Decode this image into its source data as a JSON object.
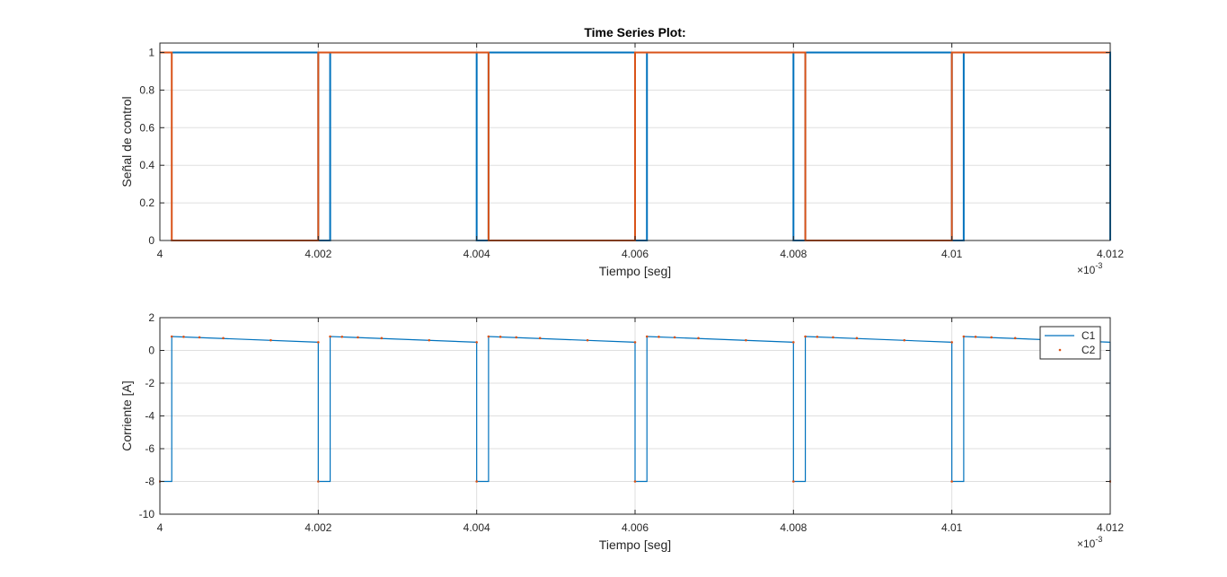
{
  "chart_data": [
    {
      "type": "line",
      "title": "Time Series Plot:",
      "xlabel": "Tiempo [seg]",
      "ylabel": "Señal de control",
      "x_exponent": "10",
      "x_exponent_power": "-3",
      "x_multiplier_sign": "×",
      "xlim": [
        4.0,
        4.012
      ],
      "ylim": [
        0,
        1.05
      ],
      "xticks": [
        4.0,
        4.002,
        4.004,
        4.006,
        4.008,
        4.01,
        4.012
      ],
      "xtick_labels": [
        "4",
        "4.002",
        "4.004",
        "4.006",
        "4.008",
        "4.01",
        "4.012"
      ],
      "yticks": [
        0,
        0.2,
        0.4,
        0.6,
        0.8,
        1
      ],
      "ytick_labels": [
        "0",
        "0.2",
        "0.4",
        "0.6",
        "0.8",
        "1"
      ],
      "grid": true,
      "series": [
        {
          "color": "#0072BD",
          "x": [
            4.0,
            4.00015,
            4.00015,
            4.002,
            4.002,
            4.00215,
            4.00215,
            4.004,
            4.004,
            4.00415,
            4.00415,
            4.006,
            4.006,
            4.00615,
            4.00615,
            4.008,
            4.008,
            4.00815,
            4.00815,
            4.01,
            4.01,
            4.01015,
            4.01015,
            4.012,
            4.012
          ],
          "y": [
            1,
            1,
            1,
            1,
            0,
            0,
            1,
            1,
            0,
            0,
            1,
            1,
            0,
            0,
            1,
            1,
            0,
            0,
            1,
            1,
            0,
            0,
            1,
            1,
            0
          ]
        },
        {
          "color": "#D95319",
          "x": [
            4.0,
            4.00015,
            4.00015,
            4.002,
            4.002,
            4.00215,
            4.00215,
            4.004,
            4.004,
            4.00415,
            4.00415,
            4.006,
            4.006,
            4.00615,
            4.00615,
            4.008,
            4.008,
            4.00815,
            4.00815,
            4.01,
            4.01,
            4.01015,
            4.01015,
            4.012
          ],
          "y": [
            1,
            1,
            0,
            0,
            1,
            1,
            1,
            1,
            1,
            1,
            0,
            0,
            1,
            1,
            1,
            1,
            1,
            1,
            0,
            0,
            1,
            1,
            1,
            1
          ]
        }
      ]
    },
    {
      "type": "line",
      "title": "",
      "xlabel": "Tiempo [seg]",
      "ylabel": "Corriente [A]",
      "x_exponent": "10",
      "x_exponent_power": "-3",
      "x_multiplier_sign": "×",
      "xlim": [
        4.0,
        4.012
      ],
      "ylim": [
        -10,
        2
      ],
      "xticks": [
        4.0,
        4.002,
        4.004,
        4.006,
        4.008,
        4.01,
        4.012
      ],
      "xtick_labels": [
        "4",
        "4.002",
        "4.004",
        "4.006",
        "4.008",
        "4.01",
        "4.012"
      ],
      "yticks": [
        -10,
        -8,
        -6,
        -4,
        -2,
        0,
        2
      ],
      "ytick_labels": [
        "-10",
        "-8",
        "-6",
        "-4",
        "-2",
        "0",
        "2"
      ],
      "grid": true,
      "legend": {
        "placement": "top-right",
        "entries": [
          "C1",
          "C2"
        ]
      },
      "series": [
        {
          "name": "C1",
          "color": "#0072BD",
          "style": "line",
          "x": [
            4.0,
            4.00015,
            4.00015,
            4.002,
            4.002,
            4.00215,
            4.00215,
            4.004,
            4.004,
            4.00415,
            4.00415,
            4.006,
            4.006,
            4.00615,
            4.00615,
            4.008,
            4.008,
            4.00815,
            4.00815,
            4.01,
            4.01,
            4.01015,
            4.01015,
            4.012,
            4.012
          ],
          "y": [
            -8,
            -8,
            0.85,
            0.5,
            -8,
            -8,
            0.85,
            0.5,
            -8,
            -8,
            0.85,
            0.5,
            -8,
            -8,
            0.85,
            0.5,
            -8,
            -8,
            0.85,
            0.5,
            -8,
            -8,
            0.85,
            0.5,
            -8
          ]
        },
        {
          "name": "C2",
          "color": "#D95319",
          "style": "markers",
          "x": [
            4.00015,
            4.0003,
            4.0005,
            4.0008,
            4.0014,
            4.002,
            4.00215,
            4.0023,
            4.0025,
            4.0028,
            4.0034,
            4.004,
            4.00415,
            4.0043,
            4.0045,
            4.0048,
            4.0054,
            4.006,
            4.00615,
            4.0063,
            4.0065,
            4.0068,
            4.0074,
            4.008,
            4.00815,
            4.0083,
            4.0085,
            4.0088,
            4.0094,
            4.01,
            4.01015,
            4.0103,
            4.0105,
            4.0108,
            4.0114,
            4.012,
            4.0,
            4.002,
            4.004,
            4.006,
            4.008,
            4.01
          ],
          "y": [
            0.85,
            0.83,
            0.8,
            0.75,
            0.62,
            0.5,
            0.85,
            0.83,
            0.8,
            0.75,
            0.62,
            0.5,
            0.85,
            0.83,
            0.8,
            0.75,
            0.62,
            0.5,
            0.85,
            0.83,
            0.8,
            0.75,
            0.62,
            0.5,
            0.85,
            0.83,
            0.8,
            0.75,
            0.62,
            0.5,
            0.85,
            0.83,
            0.8,
            0.75,
            0.62,
            -8,
            -8,
            -8,
            -8,
            -8,
            -8,
            -8
          ]
        }
      ]
    }
  ]
}
